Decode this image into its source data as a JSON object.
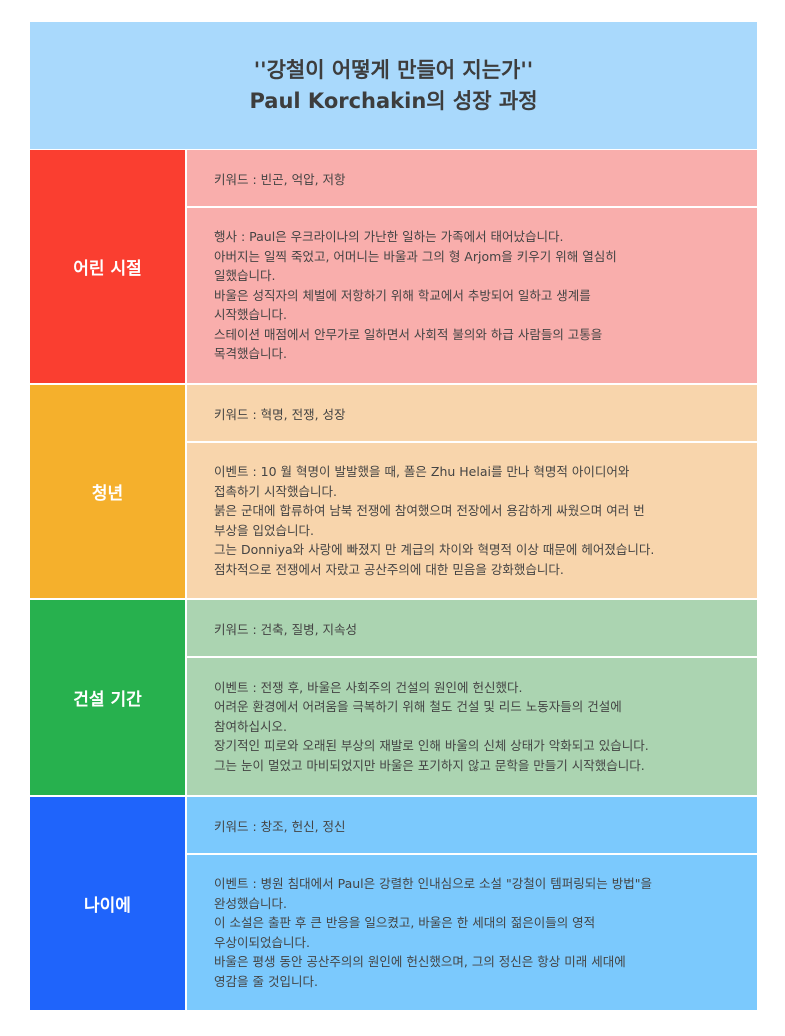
{
  "header": {
    "title_line1": "''강철이 어떻게 만들어 지는가''",
    "title_line2": "Paul Korchakin의 성장 과정"
  },
  "stages": [
    {
      "label": "어린 시절",
      "color": "#fa3e30",
      "bg": "#f9aeac",
      "keywords": "키워드 : 빈곤, 억압, 저항",
      "lines": [
        "행사 : Paul은 우크라이나의 가난한 일하는 가족에서 태어났습니다.",
        "아버지는 일찍 죽었고, 어머니는 바울과 그의 형 Arjom을 키우기 위해 열심히",
        "일했습니다.",
        "바울은 성직자의 체벌에 저항하기 위해 학교에서 추방되어 일하고 생계를",
        "시작했습니다.",
        "스테이션 매점에서 안무가로 일하면서 사회적 불의와 하급 사람들의 고통을",
        "목격했습니다."
      ]
    },
    {
      "label": "청년",
      "color": "#f5b02c",
      "bg": "#f8d5ac",
      "keywords": "키워드 : 혁명, 전쟁, 성장",
      "lines": [
        "이벤트 : 10 월 혁명이 발발했을 때, 폴은 Zhu Helai를 만나 혁명적 아이디어와",
        "접촉하기 시작했습니다.",
        "붉은 군대에 합류하여 남북 전쟁에 참여했으며 전장에서 용감하게 싸웠으며 여러 번",
        "부상을 입었습니다.",
        "그는 Donniya와 사랑에 빠졌지 만 계급의 차이와 혁명적 이상 때문에 헤어졌습니다.",
        "점차적으로 전쟁에서 자랐고 공산주의에 대한 믿음을 강화했습니다."
      ]
    },
    {
      "label": "건설 기간",
      "color": "#27b14e",
      "bg": "#abd4b1",
      "keywords": "키워드 : 건축, 질병, 지속성",
      "lines": [
        "이벤트 : 전쟁 후, 바울은 사회주의 건설의 원인에 헌신했다.",
        "어려운 환경에서 어려움을 극복하기 위해 철도 건설 및 리드 노동자들의 건설에",
        "참여하십시오.",
        "장기적인 피로와 오래된 부상의 재발로 인해 바울의 신체 상태가 악화되고 있습니다.",
        "그는 눈이 멀었고 마비되었지만 바울은 포기하지 않고 문학을 만들기 시작했습니다."
      ]
    },
    {
      "label": "나이에",
      "color": "#1f64fb",
      "bg": "#7bc9fd",
      "keywords": "키워드 : 창조, 헌신, 정신",
      "lines": [
        "이벤트 : 병원 침대에서 Paul은 강렬한 인내심으로 소설 \"강철이 템퍼링되는 방법\"을",
        "완성했습니다.",
        "이 소설은 출판 후 큰 반응을 일으켰고, 바울은 한 세대의 젊은이들의 영적",
        "우상이되었습니다.",
        "바울은 평생 동안 공산주의의 원인에 헌신했으며, 그의 정신은 항상 미래 세대에",
        "영감을 줄 것입니다."
      ]
    }
  ]
}
